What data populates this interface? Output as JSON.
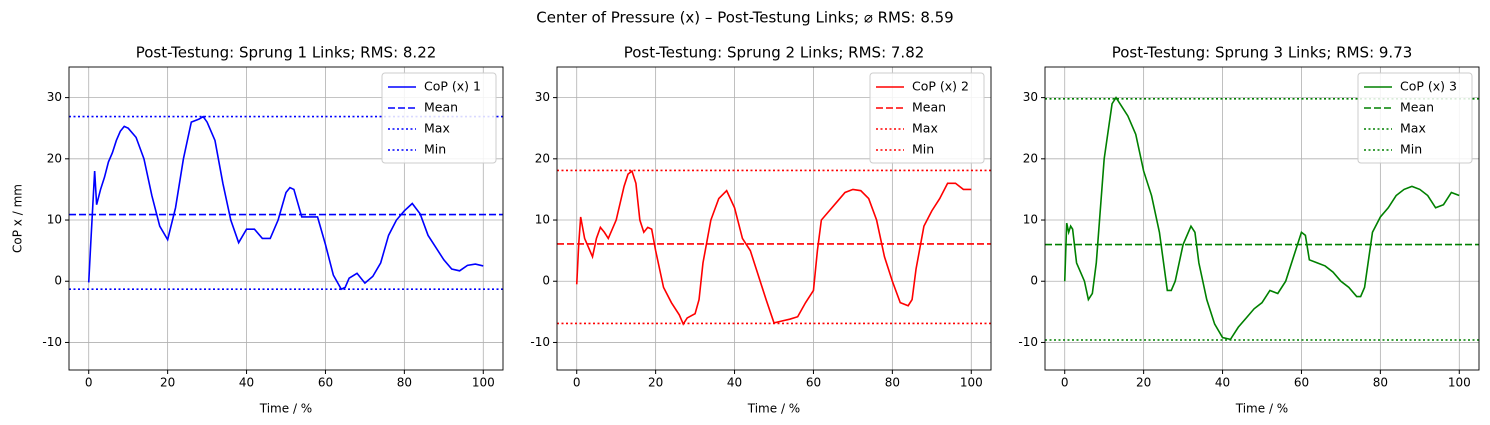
{
  "title": "Center of Pressure (x) – Post-Testung Links; ⌀ RMS: 8.59",
  "chart_data": [
    {
      "type": "line",
      "title": "Post-Testung: Sprung 1 Links; RMS: 8.22",
      "xlabel": "Time / %",
      "ylabel": "CoP x / mm",
      "x": [
        0,
        0.5,
        1,
        1.5,
        2,
        3,
        4,
        5,
        6,
        7,
        8,
        9,
        10,
        12,
        14,
        16,
        18,
        20,
        22,
        24,
        26,
        28,
        29,
        30,
        32,
        34,
        36,
        38,
        40,
        42,
        44,
        46,
        48,
        50,
        51,
        52,
        54,
        56,
        58,
        60,
        62,
        64,
        65,
        66,
        68,
        70,
        72,
        74,
        76,
        78,
        80,
        82,
        84,
        86,
        88,
        90,
        92,
        94,
        96,
        98,
        100
      ],
      "series": [
        {
          "name": "CoP (x) 1",
          "color": "#0000ff",
          "values": [
            -0.2,
            6,
            12,
            18,
            12.5,
            15,
            17,
            19.5,
            21,
            23,
            24.5,
            25.3,
            25,
            23.5,
            20,
            14,
            9,
            6.8,
            12,
            20,
            26,
            26.5,
            26.9,
            26,
            23,
            16,
            10,
            6.3,
            8.5,
            8.5,
            7,
            7,
            10,
            14.5,
            15.3,
            15,
            10.5,
            10.5,
            10.5,
            6,
            1,
            -1.3,
            -1,
            0.5,
            1.3,
            -0.3,
            0.8,
            3,
            7.5,
            10,
            11.5,
            12.7,
            11,
            7.5,
            5.5,
            3.5,
            2,
            1.7,
            2.6,
            2.8,
            2.5
          ]
        }
      ],
      "hlines": [
        {
          "name": "Mean",
          "value": 10.9,
          "color": "#0000ff",
          "style": "dashed"
        },
        {
          "name": "Max",
          "value": 26.9,
          "color": "#0000ff",
          "style": "dotted"
        },
        {
          "name": "Min",
          "value": -1.3,
          "color": "#0000ff",
          "style": "dotted"
        }
      ],
      "xlim": [
        -5,
        105
      ],
      "ylim": [
        -14.5,
        35
      ],
      "xticks": [
        0,
        20,
        40,
        60,
        80,
        100
      ],
      "yticks": [
        -10,
        0,
        10,
        20,
        30
      ],
      "grid": true,
      "legend": "upper right"
    },
    {
      "type": "line",
      "title": "Post-Testung: Sprung 2 Links; RMS: 7.82",
      "xlabel": "Time / %",
      "x": [
        0,
        0.5,
        1,
        2,
        3,
        4,
        5,
        6,
        7,
        8,
        10,
        12,
        13,
        14,
        15,
        16,
        17,
        18,
        19,
        20,
        22,
        24,
        26,
        27,
        28,
        30,
        31,
        32,
        34,
        36,
        38,
        40,
        42,
        44,
        46,
        48,
        50,
        52,
        54,
        56,
        58,
        60,
        61,
        62,
        64,
        66,
        68,
        70,
        72,
        74,
        76,
        78,
        80,
        82,
        84,
        85,
        86,
        88,
        90,
        92,
        94,
        96,
        98,
        100
      ],
      "series": [
        {
          "name": "CoP (x) 2",
          "color": "#ff0000",
          "values": [
            -0.5,
            6,
            10.5,
            7,
            5.5,
            4,
            7,
            8.8,
            8,
            7,
            10,
            15.5,
            17.5,
            18,
            16,
            10,
            8,
            8.8,
            8.5,
            5,
            -1,
            -3.5,
            -5.5,
            -7,
            -6,
            -5.3,
            -3,
            3,
            10,
            13.5,
            14.8,
            12,
            7,
            5,
            1,
            -3,
            -6.8,
            -6.5,
            -6.2,
            -5.8,
            -3.5,
            -1.5,
            5,
            10,
            11.5,
            13,
            14.5,
            15,
            14.8,
            13.5,
            10,
            4,
            0,
            -3.5,
            -4,
            -3,
            2,
            9,
            11.5,
            13.5,
            16,
            16,
            15,
            15
          ]
        }
      ],
      "hlines": [
        {
          "name": "Mean",
          "value": 6.1,
          "color": "#ff0000",
          "style": "dashed"
        },
        {
          "name": "Max",
          "value": 18.1,
          "color": "#ff0000",
          "style": "dotted"
        },
        {
          "name": "Min",
          "value": -6.9,
          "color": "#ff0000",
          "style": "dotted"
        }
      ],
      "xlim": [
        -5,
        105
      ],
      "ylim": [
        -14.5,
        35
      ],
      "xticks": [
        0,
        20,
        40,
        60,
        80,
        100
      ],
      "yticks": [
        -10,
        0,
        10,
        20,
        30
      ],
      "grid": true,
      "legend": "upper right"
    },
    {
      "type": "line",
      "title": "Post-Testung: Sprung 3 Links; RMS: 9.73",
      "xlabel": "Time / %",
      "x": [
        0,
        0.5,
        1,
        1.5,
        2,
        3,
        4,
        5,
        6,
        7,
        8,
        10,
        12,
        13,
        14,
        16,
        18,
        20,
        22,
        24,
        26,
        27,
        28,
        30,
        32,
        33,
        34,
        36,
        38,
        40,
        42,
        44,
        46,
        48,
        50,
        52,
        54,
        56,
        58,
        60,
        61,
        62,
        64,
        66,
        68,
        70,
        72,
        74,
        75,
        76,
        78,
        80,
        82,
        84,
        86,
        88,
        90,
        92,
        94,
        96,
        98,
        100
      ],
      "series": [
        {
          "name": "CoP (x) 3",
          "color": "#008000",
          "values": [
            0,
            9.5,
            8,
            9,
            8.5,
            3,
            1.5,
            0,
            -3,
            -2,
            3,
            20,
            29,
            30,
            29,
            27,
            24,
            18,
            14,
            8,
            -1.5,
            -1.5,
            0,
            6,
            9,
            8,
            3,
            -3,
            -7,
            -9.2,
            -9.5,
            -7.5,
            -6,
            -4.5,
            -3.5,
            -1.5,
            -2,
            0,
            4,
            8,
            7.5,
            3.5,
            3,
            2.5,
            1.5,
            0,
            -1,
            -2.5,
            -2.5,
            -1,
            8,
            10.5,
            12,
            14,
            15,
            15.5,
            15,
            14,
            12,
            12.5,
            14.5,
            14
          ]
        }
      ],
      "hlines": [
        {
          "name": "Mean",
          "value": 6.0,
          "color": "#008000",
          "style": "dashed"
        },
        {
          "name": "Max",
          "value": 29.8,
          "color": "#008000",
          "style": "dotted"
        },
        {
          "name": "Min",
          "value": -9.6,
          "color": "#008000",
          "style": "dotted"
        }
      ],
      "xlim": [
        -5,
        105
      ],
      "ylim": [
        -14.5,
        35
      ],
      "xticks": [
        0,
        20,
        40,
        60,
        80,
        100
      ],
      "yticks": [
        -10,
        0,
        10,
        20,
        30
      ],
      "grid": true,
      "legend": "upper right"
    }
  ]
}
